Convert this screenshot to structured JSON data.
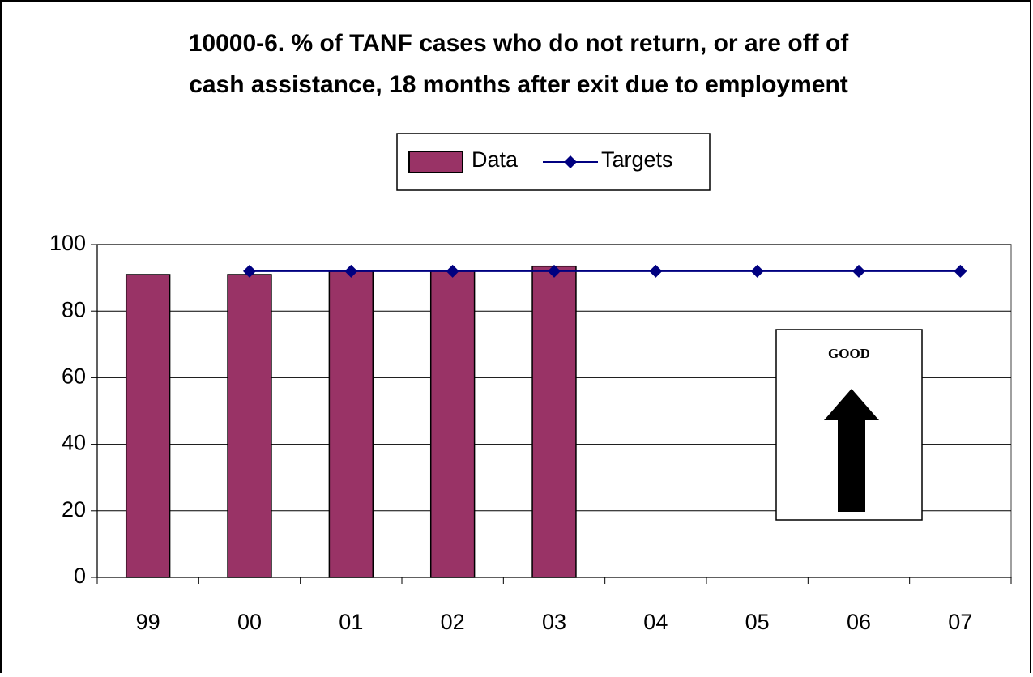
{
  "chart_data": {
    "type": "bar",
    "title": [
      "10000-6. % of TANF cases who do not return, or are off of",
      "cash assistance, 18 months after exit due to employment"
    ],
    "categories": [
      "99",
      "00",
      "01",
      "02",
      "03",
      "04",
      "05",
      "06",
      "07"
    ],
    "series": [
      {
        "name": "Data",
        "type": "bar",
        "color": "#993366",
        "values": [
          91,
          91,
          92,
          92,
          93.5,
          null,
          null,
          null,
          null
        ]
      },
      {
        "name": "Targets",
        "type": "line",
        "color": "#000080",
        "values": [
          null,
          92,
          92,
          92,
          92,
          92,
          92,
          92,
          92
        ]
      }
    ],
    "ylim": [
      0,
      100
    ],
    "yticks": [
      0,
      20,
      40,
      60,
      80,
      100
    ],
    "grid": true,
    "legend": "top",
    "annotation": "GOOD"
  }
}
